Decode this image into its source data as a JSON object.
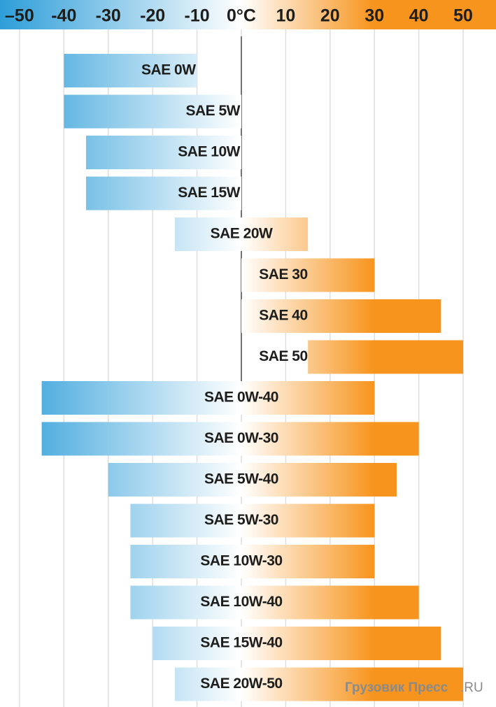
{
  "chart_data": {
    "type": "range_bar",
    "categories": [
      "SAE 0W",
      "SAE 5W",
      "SAE 10W",
      "SAE 15W",
      "SAE 20W",
      "SAE 30",
      "SAE 40",
      "SAE 50",
      "SAE 0W-40",
      "SAE 0W-30",
      "SAE 5W-40",
      "SAE 5W-30",
      "SAE 10W-30",
      "SAE 10W-40",
      "SAE 15W-40",
      "SAE 20W-50"
    ],
    "starts": [
      -40,
      -40,
      -35,
      -35,
      -15,
      0,
      0,
      15,
      -45,
      -45,
      -30,
      -25,
      -25,
      -25,
      -20,
      -15
    ],
    "ends": [
      -10,
      0,
      0,
      0,
      15,
      30,
      45,
      50,
      30,
      40,
      35,
      30,
      30,
      40,
      45,
      50
    ],
    "xlim": [
      -54.4,
      57.4
    ],
    "xticks": [
      {
        "value": -50,
        "label": "–50"
      },
      -40,
      -30,
      -20,
      -10,
      {
        "value": 0,
        "label": "0°C"
      },
      10,
      20,
      30,
      40,
      50
    ],
    "grid": true,
    "cold_color": "#2e9ed9",
    "warm_color": "#f7941d",
    "watermark": "Грузовик Пресс",
    "watermark_suffix": ".RU"
  }
}
